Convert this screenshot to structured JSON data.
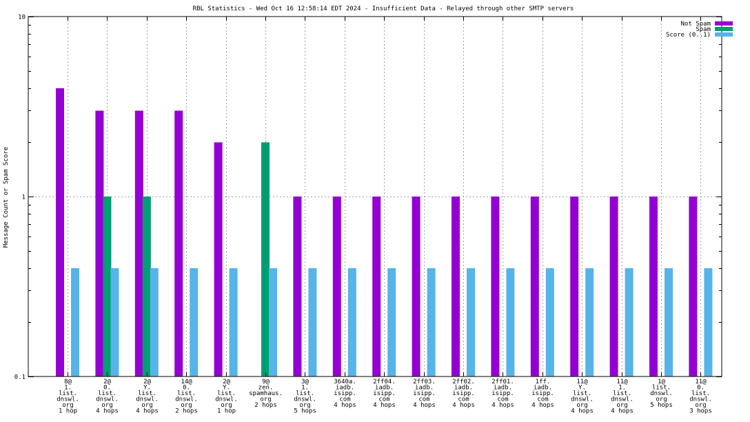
{
  "chart_data": {
    "type": "bar",
    "title": "RBL Statistics - Wed Oct 16 12:58:14 EDT 2024 - Insufficient Data - Relayed through other SMTP servers",
    "xlabel": "",
    "ylabel": "Message Count or Spam Score",
    "yscale": "log",
    "ylim": [
      0.1,
      10
    ],
    "yticks": [
      {
        "value": 0.1,
        "label": "0.1"
      },
      {
        "value": 1,
        "label": "1"
      },
      {
        "value": 10,
        "label": "10"
      }
    ],
    "grid": true,
    "legend_position": "top-right",
    "categories": [
      [
        "8@",
        "1.",
        "list.",
        "dnswl.",
        "org",
        "1 hop"
      ],
      [
        "2@",
        "0.",
        "list.",
        "dnswl.",
        "org",
        "4 hops"
      ],
      [
        "2@",
        "Y.",
        "list.",
        "dnswl.",
        "org",
        "4 hops"
      ],
      [
        "14@",
        "0.",
        "list.",
        "dnswl.",
        "org",
        "2 hops"
      ],
      [
        "2@",
        "Y.",
        "list.",
        "dnswl.",
        "org",
        "1 hop"
      ],
      [
        "9@",
        "zen.",
        "spamhaus.",
        "org",
        "2 hops"
      ],
      [
        "3@",
        "1.",
        "list.",
        "dnswl.",
        "org",
        "5 hops"
      ],
      [
        "3640a.",
        "iadb.",
        "isipp.",
        "com",
        "4 hops"
      ],
      [
        "2ff04.",
        "iadb.",
        "isipp.",
        "com",
        "4 hops"
      ],
      [
        "2ff03.",
        "iadb.",
        "isipp.",
        "com",
        "4 hops"
      ],
      [
        "2ff02.",
        "iadb.",
        "isipp.",
        "com",
        "4 hops"
      ],
      [
        "2ff01.",
        "iadb.",
        "isipp.",
        "com",
        "4 hops"
      ],
      [
        "1ff.",
        "iadb.",
        "isipp.",
        "com",
        "4 hops"
      ],
      [
        "11@",
        "Y.",
        "list.",
        "dnswl.",
        "org",
        "4 hops"
      ],
      [
        "11@",
        "1.",
        "list.",
        "dnswl.",
        "org",
        "4 hops"
      ],
      [
        "1@",
        "list.",
        "dnswl.",
        "org",
        "5 hops"
      ],
      [
        "11@",
        "0.",
        "list.",
        "dnswl.",
        "org",
        "3 hops"
      ]
    ],
    "series": [
      {
        "name": "Not Spam",
        "color": "#9400d3",
        "values": [
          4,
          3,
          3,
          3,
          2,
          0,
          1,
          1,
          1,
          1,
          1,
          1,
          1,
          1,
          1,
          1,
          1
        ]
      },
      {
        "name": "Spam",
        "color": "#009e73",
        "values": [
          0,
          1,
          1,
          0,
          0,
          2,
          0,
          0,
          0,
          0,
          0,
          0,
          0,
          0,
          0,
          0,
          0
        ]
      },
      {
        "name": "Score (0..1)",
        "color": "#56b4e9",
        "values": [
          0.4,
          0.4,
          0.4,
          0.4,
          0.4,
          0.4,
          0.4,
          0.4,
          0.4,
          0.4,
          0.4,
          0.4,
          0.4,
          0.4,
          0.4,
          0.4,
          0.4
        ]
      }
    ]
  }
}
